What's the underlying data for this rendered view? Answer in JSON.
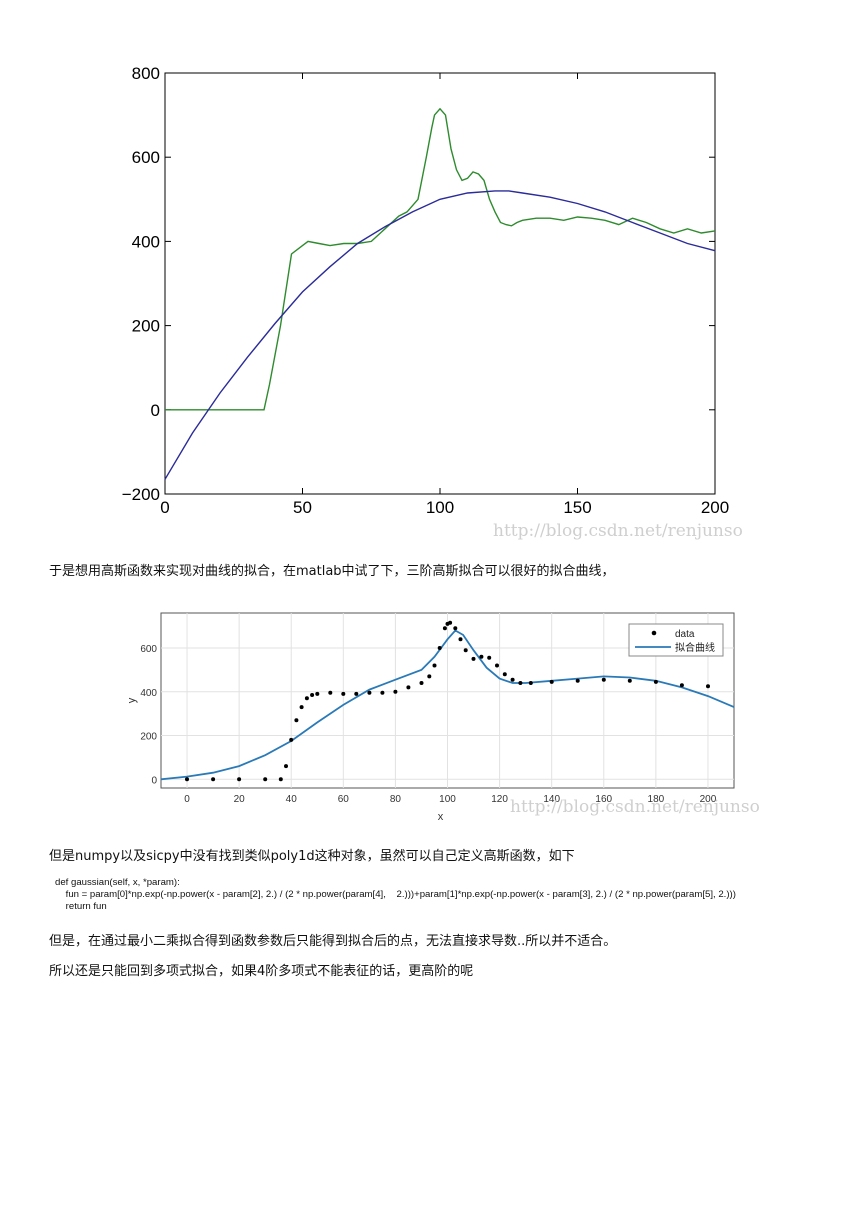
{
  "figure1": {
    "watermark": "http://blog.csdn.net/renjunso",
    "chart_data": {
      "type": "line",
      "xlim": [
        0,
        200
      ],
      "ylim": [
        -200,
        800
      ],
      "xticks": [
        0,
        50,
        100,
        150,
        200
      ],
      "yticks": [
        -200,
        0,
        200,
        400,
        600,
        800
      ],
      "xtick_labels": [
        "0",
        "50",
        "100",
        "150",
        "200"
      ],
      "ytick_labels": [
        "−200",
        "0",
        "200",
        "400",
        "600",
        "800"
      ],
      "grid": false,
      "series": [
        {
          "color": "#2e8b2e",
          "x": [
            0,
            10,
            20,
            30,
            36,
            38,
            42,
            46,
            50,
            52,
            56,
            60,
            65,
            70,
            75,
            80,
            85,
            88,
            92,
            95,
            97,
            98,
            100,
            102,
            104,
            106,
            108,
            110,
            112,
            114,
            116,
            118,
            120,
            122,
            124,
            126,
            128,
            130,
            135,
            140,
            145,
            150,
            155,
            160,
            165,
            170,
            175,
            180,
            185,
            190,
            195,
            200
          ],
          "y": [
            0,
            0,
            0,
            0,
            0,
            60,
            200,
            370,
            390,
            400,
            395,
            390,
            395,
            395,
            400,
            430,
            460,
            470,
            500,
            600,
            670,
            700,
            715,
            700,
            620,
            570,
            545,
            550,
            565,
            560,
            545,
            500,
            470,
            445,
            440,
            437,
            445,
            450,
            455,
            455,
            450,
            458,
            455,
            450,
            440,
            455,
            445,
            430,
            420,
            430,
            420,
            425
          ]
        },
        {
          "color": "#2b2b9a",
          "x": [
            0,
            10,
            20,
            30,
            40,
            50,
            60,
            70,
            80,
            90,
            100,
            110,
            120,
            125,
            130,
            140,
            150,
            160,
            170,
            180,
            190,
            200
          ],
          "y": [
            -165,
            -55,
            40,
            125,
            205,
            280,
            340,
            395,
            435,
            470,
            500,
            515,
            520,
            520,
            515,
            505,
            490,
            470,
            445,
            420,
            395,
            378
          ]
        }
      ]
    }
  },
  "paragraph1": "于是想用高斯函数来实现对曲线的拟合，在matlab中试了下，三阶高斯拟合可以很好的拟合曲线，",
  "figure2": {
    "watermark": "http://blog.csdn.net/renjunso",
    "chart_data": {
      "type": "scatter",
      "xlabel": "x",
      "ylabel": "y",
      "xlim": [
        -10,
        210
      ],
      "ylim": [
        -40,
        760
      ],
      "xticks": [
        0,
        20,
        40,
        60,
        80,
        100,
        120,
        140,
        160,
        180,
        200
      ],
      "yticks": [
        0,
        200,
        400,
        600
      ],
      "xtick_labels": [
        "0",
        "20",
        "40",
        "60",
        "80",
        "100",
        "120",
        "140",
        "160",
        "180",
        "200"
      ],
      "ytick_labels": [
        "0",
        "200",
        "400",
        "600"
      ],
      "grid": true,
      "legend_position": "top-right",
      "legend": [
        "data",
        "拟合曲线"
      ],
      "series": [
        {
          "name": "data",
          "color": "#000000",
          "x": [
            0,
            10,
            20,
            30,
            36,
            38,
            40,
            42,
            44,
            46,
            48,
            50,
            55,
            60,
            65,
            70,
            75,
            80,
            85,
            90,
            93,
            95,
            97,
            99,
            100,
            101,
            103,
            105,
            107,
            110,
            113,
            116,
            119,
            122,
            125,
            128,
            132,
            140,
            150,
            160,
            170,
            180,
            190,
            200
          ],
          "y": [
            0,
            0,
            0,
            0,
            0,
            60,
            180,
            270,
            330,
            370,
            385,
            390,
            395,
            390,
            390,
            395,
            395,
            400,
            420,
            440,
            470,
            520,
            600,
            690,
            710,
            715,
            690,
            640,
            590,
            550,
            560,
            555,
            520,
            480,
            455,
            440,
            440,
            445,
            450,
            455,
            450,
            445,
            430,
            425
          ]
        },
        {
          "name": "拟合曲线",
          "color": "#2a7ab8",
          "x": [
            -10,
            0,
            10,
            20,
            30,
            40,
            50,
            60,
            70,
            80,
            90,
            95,
            100,
            103,
            106,
            110,
            115,
            120,
            125,
            130,
            140,
            150,
            160,
            170,
            180,
            190,
            200,
            210
          ],
          "y": [
            0,
            12,
            30,
            60,
            110,
            175,
            260,
            340,
            410,
            455,
            500,
            560,
            640,
            680,
            660,
            590,
            510,
            460,
            440,
            440,
            450,
            460,
            470,
            465,
            450,
            420,
            380,
            330
          ]
        }
      ]
    }
  },
  "paragraph2": "但是numpy以及sicpy中没有找到类似poly1d这种对象，虽然可以自己定义高斯函数，如下",
  "code_lines": [
    "def gaussian(self, x, *param):",
    "    fun = param[0]*np.exp(-np.power(x - param[2], 2.) / (2 * np.power(param[4],    2.)))+param[1]*np.exp(-np.power(x - param[3], 2.) / (2 * np.power(param[5], 2.)))",
    "    return fun"
  ],
  "paragraph3": "但是，在通过最小二乘拟合得到函数参数后只能得到拟合后的点，无法直接求导数..所以并不适合。",
  "paragraph4": "所以还是只能回到多项式拟合，如果4阶多项式不能表征的话，更高阶的呢"
}
